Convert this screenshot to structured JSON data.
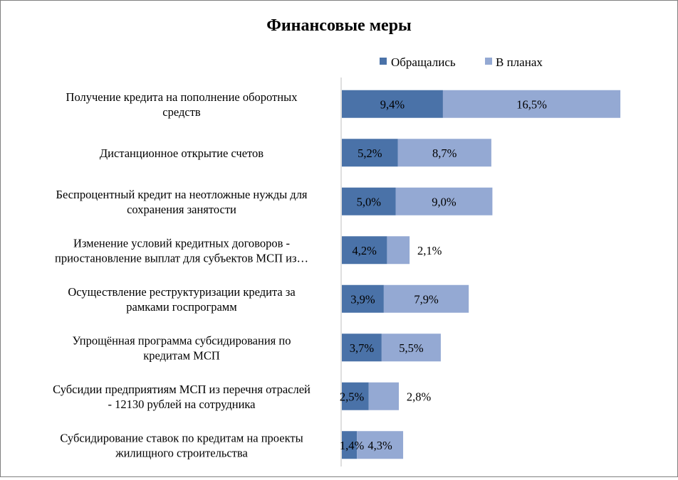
{
  "chart_data": {
    "type": "bar",
    "orientation": "horizontal",
    "stacked": true,
    "title": "Финансовые меры",
    "xlabel": "",
    "ylabel": "",
    "xlim": [
      0,
      26
    ],
    "legend_position": "top-right",
    "categories": [
      [
        "Получение кредита на пополнение оборотных",
        "средств"
      ],
      [
        "Дистанционное открытие счетов"
      ],
      [
        "Беспроцентный кредит на неотложные нужды для",
        "сохранения занятости"
      ],
      [
        "Изменение условий кредитных договоров -",
        "приостановление выплат для субъектов МСП из…"
      ],
      [
        "Осуществление реструктуризации кредита за",
        "рамками госпрограмм"
      ],
      [
        "Упрощённая программа субсидирования по",
        "кредитам МСП"
      ],
      [
        "Субсидии предприятиям МСП из перечня отраслей",
        "- 12130 рублей на сотрудника"
      ],
      [
        "Субсидирование ставок по кредитам на проекты",
        "жилищного строительства"
      ]
    ],
    "series": [
      {
        "name": "Обращались",
        "color": "#4a72a8",
        "values": [
          9.4,
          5.2,
          5.0,
          4.2,
          3.9,
          3.7,
          2.5,
          1.4
        ],
        "labels": [
          "9,4%",
          "5,2%",
          "5,0%",
          "4,2%",
          "3,9%",
          "3,7%",
          "2,5%",
          "1,4%"
        ]
      },
      {
        "name": "В планах",
        "color": "#94a9d3",
        "values": [
          16.5,
          8.7,
          9.0,
          2.1,
          7.9,
          5.5,
          2.8,
          4.3
        ],
        "labels": [
          "16,5%",
          "8,7%",
          "9,0%",
          "2,1%",
          "7,9%",
          "5,5%",
          "2,8%",
          "4,3%"
        ]
      }
    ]
  }
}
